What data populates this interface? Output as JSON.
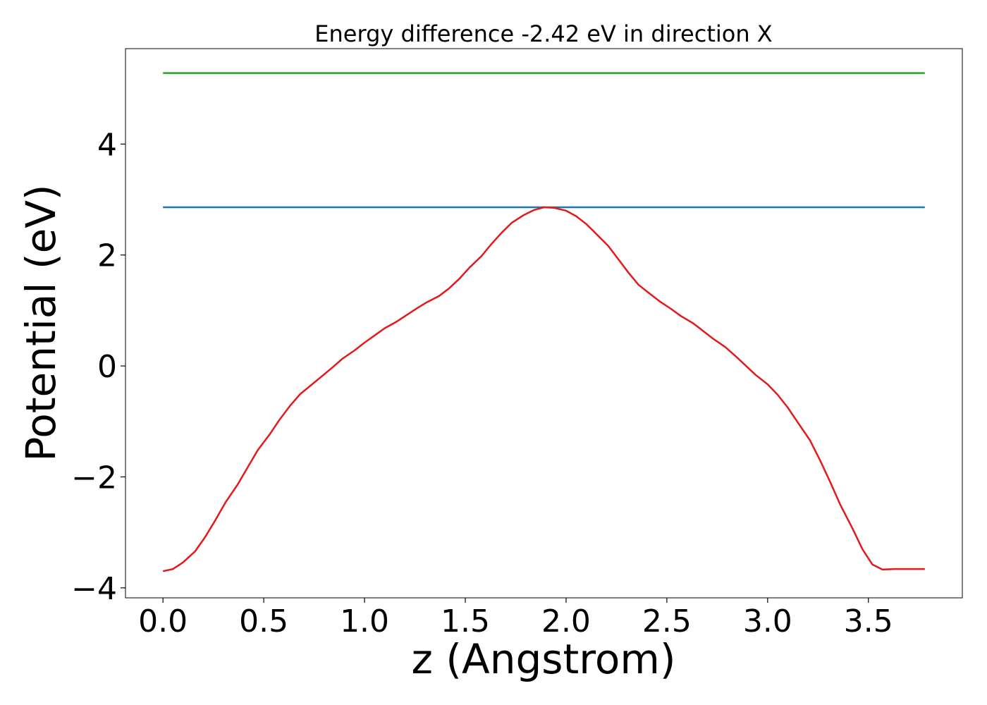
{
  "chart_data": {
    "type": "line",
    "title": "Energy difference -2.42 eV in direction X",
    "xlabel": "z (Angstrom)",
    "ylabel": "Potential (eV)",
    "xlim": [
      -0.186,
      3.966
    ],
    "ylim": [
      -4.18,
      5.72
    ],
    "xticks": [
      0.0,
      0.5,
      1.0,
      1.5,
      2.0,
      2.5,
      3.0,
      3.5
    ],
    "xtick_labels": [
      "0.0",
      "0.5",
      "1.0",
      "1.5",
      "2.0",
      "2.5",
      "3.0",
      "3.5"
    ],
    "yticks": [
      -4,
      -2,
      0,
      2,
      4
    ],
    "ytick_labels": [
      "−4",
      "−2",
      "0",
      "2",
      "4"
    ],
    "grid": false,
    "series": [
      {
        "color": "#2ca02c",
        "x": [
          0.0,
          3.78
        ],
        "y": [
          5.28,
          5.28
        ]
      },
      {
        "color": "#1f77b4",
        "x": [
          0.0,
          3.78
        ],
        "y": [
          2.86,
          2.86
        ]
      },
      {
        "color": "#e31a1c",
        "x": [
          0.0,
          0.05,
          0.1,
          0.16,
          0.21,
          0.26,
          0.31,
          0.37,
          0.42,
          0.47,
          0.53,
          0.58,
          0.63,
          0.68,
          0.74,
          0.79,
          0.84,
          0.89,
          0.95,
          1.0,
          1.05,
          1.1,
          1.16,
          1.21,
          1.26,
          1.31,
          1.37,
          1.42,
          1.47,
          1.52,
          1.58,
          1.63,
          1.68,
          1.73,
          1.79,
          1.84,
          1.89,
          1.94,
          2.0,
          2.05,
          2.1,
          2.15,
          2.21,
          2.26,
          2.31,
          2.36,
          2.42,
          2.47,
          2.52,
          2.57,
          2.63,
          2.68,
          2.73,
          2.79,
          2.84,
          2.89,
          2.94,
          3.0,
          3.05,
          3.1,
          3.15,
          3.21,
          3.26,
          3.31,
          3.36,
          3.42,
          3.47,
          3.52,
          3.57,
          3.63,
          3.68,
          3.73,
          3.78
        ],
        "y": [
          -3.7,
          -3.66,
          -3.54,
          -3.34,
          -3.08,
          -2.78,
          -2.46,
          -2.14,
          -1.83,
          -1.52,
          -1.23,
          -0.96,
          -0.72,
          -0.51,
          -0.33,
          -0.18,
          -0.03,
          0.13,
          0.28,
          0.42,
          0.55,
          0.68,
          0.8,
          0.92,
          1.04,
          1.15,
          1.26,
          1.4,
          1.57,
          1.77,
          1.98,
          2.2,
          2.4,
          2.58,
          2.72,
          2.81,
          2.86,
          2.85,
          2.8,
          2.7,
          2.56,
          2.38,
          2.16,
          1.92,
          1.68,
          1.46,
          1.29,
          1.15,
          1.03,
          0.9,
          0.77,
          0.63,
          0.49,
          0.34,
          0.18,
          0.01,
          -0.16,
          -0.33,
          -0.52,
          -0.75,
          -1.02,
          -1.34,
          -1.7,
          -2.09,
          -2.5,
          -2.92,
          -3.3,
          -3.58,
          -3.67,
          -3.66,
          -3.66,
          -3.66,
          -3.66
        ]
      }
    ]
  }
}
